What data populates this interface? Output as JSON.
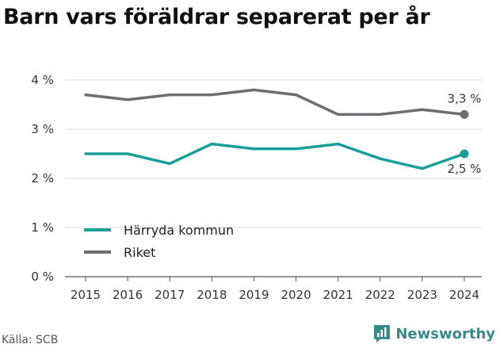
{
  "title": "Barn vars föräldrar separerat per år",
  "source": "Källa: SCB",
  "brand": {
    "name": "Newsworthy",
    "icon": "newsworthy-logo-icon",
    "color": "#3a8a86"
  },
  "chart_data": {
    "type": "line",
    "title": "Barn vars föräldrar separerat per år",
    "x": [
      2015,
      2016,
      2017,
      2018,
      2019,
      2020,
      2021,
      2022,
      2023,
      2024
    ],
    "ylim": [
      0,
      4
    ],
    "yticks": [
      0,
      1,
      2,
      3,
      4
    ],
    "ytick_labels": [
      "0 %",
      "1 %",
      "2 %",
      "3 %",
      "4 %"
    ],
    "grid": true,
    "legend": "lower-left",
    "series": [
      {
        "name": "Härryda kommun",
        "color": "#1a9e95",
        "values": [
          2.5,
          2.5,
          2.3,
          2.7,
          2.6,
          2.6,
          2.7,
          2.4,
          2.2,
          2.5
        ],
        "end_label": "2,5 %"
      },
      {
        "name": "Riket",
        "color": "#6e6d72",
        "values": [
          3.7,
          3.6,
          3.7,
          3.7,
          3.8,
          3.7,
          3.3,
          3.3,
          3.4,
          3.3
        ],
        "end_label": "3,3 %"
      }
    ]
  }
}
